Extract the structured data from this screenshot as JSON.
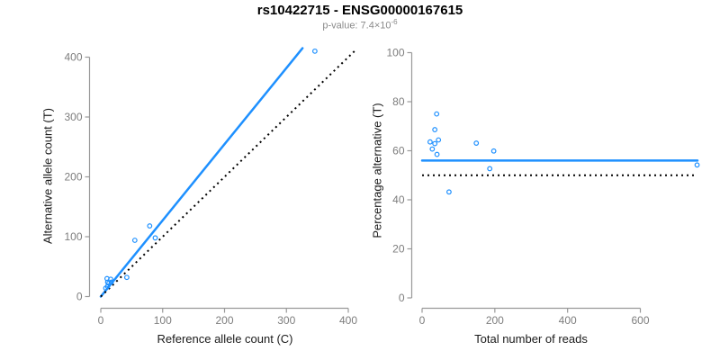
{
  "header": {
    "title": "rs10422715 - ENSG00000167615",
    "p_value_prefix": "p-value: 7.4×10",
    "p_value_exponent": "-6"
  },
  "colors": {
    "accent_blue": "#1E90FF",
    "point_blue": "#1E90FF",
    "dotted_black": "#000000",
    "axis_gray": "#999999",
    "tick_text_gray": "#7d7d7d"
  },
  "chart_data": [
    {
      "type": "scatter",
      "name": "allele-counts-panel",
      "xlabel": "Reference allele count (C)",
      "ylabel": "Alternative allele count (T)",
      "xlim": [
        0,
        400
      ],
      "ylim": [
        0,
        400
      ],
      "x_ticks": [
        0,
        100,
        200,
        300,
        400
      ],
      "y_ticks": [
        0,
        100,
        200,
        300,
        400
      ],
      "grid": false,
      "legend": null,
      "points": [
        [
          10,
          30
        ],
        [
          11,
          24
        ],
        [
          16,
          29
        ],
        [
          13,
          22
        ],
        [
          8,
          14
        ],
        [
          11,
          17
        ],
        [
          17,
          24
        ],
        [
          42,
          32
        ],
        [
          55,
          94
        ],
        [
          79,
          118
        ],
        [
          88,
          98
        ],
        [
          346,
          410
        ]
      ],
      "lines": [
        {
          "name": "fitted-ratio-line",
          "type": "segment",
          "from": [
            0,
            0
          ],
          "to": [
            326,
            415
          ],
          "style": "solid",
          "color": "accent_blue"
        },
        {
          "name": "identity-line",
          "type": "segment",
          "from": [
            0,
            0
          ],
          "to": [
            413,
            413
          ],
          "style": "dotted",
          "color": "dotted_black"
        }
      ]
    },
    {
      "type": "scatter",
      "name": "percentage-alternative-panel",
      "xlabel": "Total number of reads",
      "ylabel": "Percentage alternative (T)",
      "xlim": [
        0,
        760
      ],
      "ylim": [
        0,
        100
      ],
      "x_ticks": [
        0,
        200,
        400,
        600
      ],
      "y_ticks": [
        0,
        20,
        40,
        60,
        80,
        100
      ],
      "grid": false,
      "legend": null,
      "points": [
        [
          40,
          75.0
        ],
        [
          35,
          68.6
        ],
        [
          45,
          64.4
        ],
        [
          35,
          62.9
        ],
        [
          22,
          63.6
        ],
        [
          28,
          60.7
        ],
        [
          41,
          58.5
        ],
        [
          74,
          43.2
        ],
        [
          149,
          63.1
        ],
        [
          197,
          59.9
        ],
        [
          186,
          52.7
        ],
        [
          756,
          54.2
        ]
      ],
      "lines": [
        {
          "name": "fitted-percentage-line",
          "type": "hline",
          "y": 56,
          "style": "solid",
          "color": "accent_blue"
        },
        {
          "name": "null-50-percent-line",
          "type": "hline",
          "y": 50,
          "style": "dotted",
          "color": "dotted_black"
        }
      ]
    }
  ]
}
